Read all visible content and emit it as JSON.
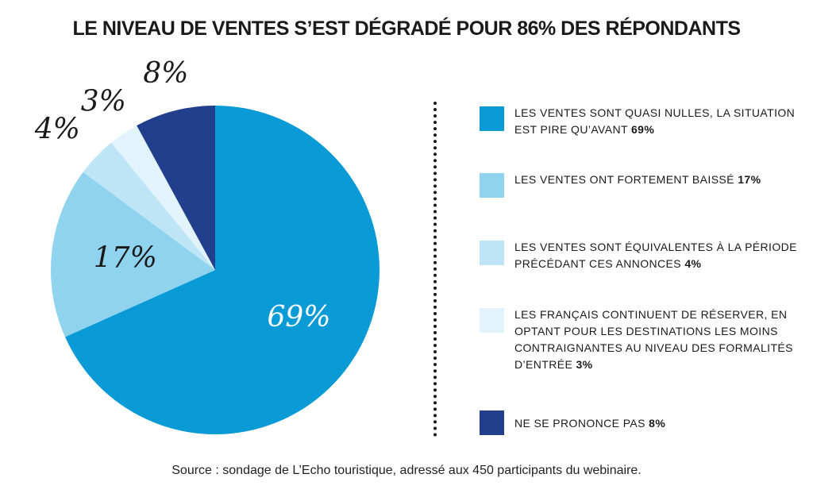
{
  "chart_data": {
    "type": "pie",
    "title": "LE NIVEAU DE VENTES S’EST DÉGRADÉ POUR 86% DES RÉPONDANTS",
    "slices": [
      {
        "label": "LES VENTES SONT QUASI NULLES, LA SITUATION EST PIRE QU’AVANT",
        "value": 69,
        "value_label": "69%",
        "color": "#0a9bd6"
      },
      {
        "label": "LES VENTES ONT FORTEMENT BAISSÉ",
        "value": 17,
        "value_label": "17%",
        "color": "#8fd3ef"
      },
      {
        "label": "LES VENTES SONT ÉQUIVALENTES À LA PÉRIODE PRÉCÉDANT CES ANNONCES",
        "value": 4,
        "value_label": "4%",
        "color": "#bde5f6"
      },
      {
        "label": "LES FRANÇAIS CONTINUENT DE RÉSERVER, EN OPTANT POUR LES DESTINATIONS LES MOINS CONTRAIGNANTES AU NIVEAU DES FORMALITÉS D’ENTRÉE",
        "value": 3,
        "value_label": "3%",
        "color": "#e2f3fb"
      },
      {
        "label": "NE SE PRONONCE PAS",
        "value": 8,
        "value_label": "8%",
        "color": "#213f8c"
      }
    ],
    "legend_position": "right",
    "source": "Source : sondage de L’Echo touristique, adressé aux 450 participants du webinaire."
  }
}
